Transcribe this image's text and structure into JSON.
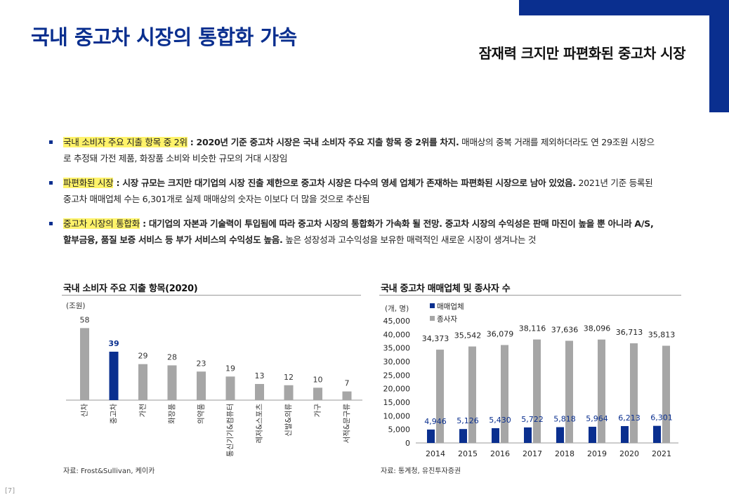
{
  "header": {
    "title": "국내 중고차 시장의 통합화 가속",
    "subtitle": "잠재력 크지만 파편화된 중고차 시장"
  },
  "bullets": [
    {
      "highlight": "국내 소비자 주요 지출 항목 중 2위",
      "bold": " : 2020년 기준 중고차 시장은 국내 소비자 주요 지출 항목 중 2위를 차지.",
      "rest": " 매매상의 중복 거래를 제외하더라도 연 29조원 시장으로 추정돼 가전 제품, 화장품 소비와 비슷한 규모의 거대 시장임"
    },
    {
      "highlight": "파편화된 시장",
      "bold": " : 시장 규모는 크지만 대기업의 시장 진출 제한으로 중고차 시장은 다수의 영세 업체가 존재하는 파편화된 시장으로 남아 있었음.",
      "rest": " 2021년 기준 등록된 중고차 매매업체 수는 6,301개로 실제 매매상의 숫자는 이보다 더 많을 것으로 추산됨"
    },
    {
      "highlight": "중고차 시장의 통합화",
      "bold": " : 대기업의 자본과 기술력이 투입됨에 따라 중고차 시장의 통합화가 가속화 될 전망. 중고차 시장의 수익성은 판매 마진이 높을 뿐 아니라 A/S, 할부금융, 품질 보증 서비스 등 부가 서비스의 수익성도 높음.",
      "rest": " 높은 성장성과 고수익성을 보유한 매력적인 새로운 시장이 생겨나는 것"
    }
  ],
  "left_chart": {
    "title": "국내 소비자 주요 지출 항목(2020)",
    "unit": "(조원)",
    "source": "자료: Frost&Sullivan, 케이카"
  },
  "right_chart": {
    "title": "국내 중고차 매매업체 및 종사자 수",
    "unit": "(개, 명)",
    "source": "자료: 통계청, 유진투자증권"
  },
  "page_number": "[7]",
  "colors": {
    "brand": "#0a2f8f",
    "highlight": "#fff36a",
    "bar_gray": "#a6a6a6",
    "bar_blue": "#0a2f8f"
  },
  "chart_data": [
    {
      "type": "bar",
      "title": "국내 소비자 주요 지출 항목(2020)",
      "ylabel": "(조원)",
      "categories": [
        "신차",
        "중고차",
        "가전",
        "화장품",
        "의약품",
        "통신기기&컴퓨터",
        "레저&스포츠",
        "신발&의류",
        "가구",
        "서적&문구류"
      ],
      "values": [
        58,
        39,
        29,
        28,
        23,
        19,
        13,
        12,
        10,
        7
      ],
      "highlight_index": 1,
      "ylim": [
        0,
        65
      ],
      "grid": false
    },
    {
      "type": "bar",
      "title": "국내 중고차 매매업체 및 종사자 수",
      "ylabel": "(개, 명)",
      "categories": [
        "2014",
        "2015",
        "2016",
        "2017",
        "2018",
        "2019",
        "2020",
        "2021"
      ],
      "series": [
        {
          "name": "매매업체",
          "color": "#0a2f8f",
          "values": [
            4946,
            5126,
            5430,
            5722,
            5818,
            5964,
            6213,
            6301
          ]
        },
        {
          "name": "종사자",
          "color": "#a6a6a6",
          "values": [
            34373,
            35542,
            36079,
            38116,
            37636,
            38096,
            36713,
            35813
          ]
        }
      ],
      "ylim": [
        0,
        45000
      ],
      "yticks": [
        0,
        5000,
        10000,
        15000,
        20000,
        25000,
        30000,
        35000,
        40000,
        45000
      ],
      "legend": "top-left",
      "grid": false
    }
  ]
}
